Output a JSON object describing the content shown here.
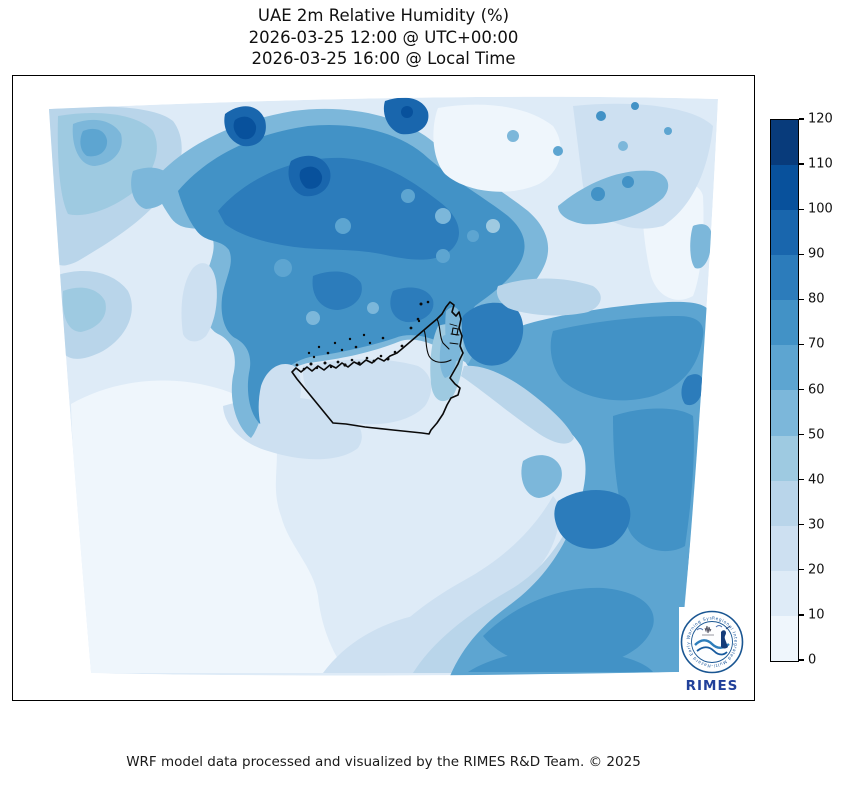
{
  "figure": {
    "title_line1": "UAE 2m Relative Humidity (%)",
    "title_line2": "2026-03-25 12:00 @ UTC+00:00",
    "title_line3": "2026-03-25 16:00 @ Local Time"
  },
  "colorbar": {
    "ticks": [
      0,
      10,
      20,
      30,
      40,
      50,
      60,
      70,
      80,
      90,
      100,
      110,
      120
    ],
    "band_colors": [
      "#eff6fc",
      "#deebf7",
      "#cde0f1",
      "#b9d5ea",
      "#9ecae1",
      "#7cb7da",
      "#5da5d1",
      "#4292c6",
      "#2c7cbb",
      "#1966ad",
      "#08519c",
      "#083b7b"
    ],
    "border_color": "#000000"
  },
  "logo": {
    "ring_text": "Regional Integrated Multi-Hazard Early Warning System",
    "name": "RIMES",
    "name_color": "#21409a",
    "ring_color": "#1a5692"
  },
  "footer": {
    "credit": "WRF model data processed and visualized by the RIMES R&D Team. © 2025"
  },
  "chart_data": {
    "type": "heatmap",
    "subtype": "filled-contour weather map",
    "title": "UAE 2m Relative Humidity (%)",
    "subtitle_utc": "2026-03-25 12:00 @ UTC+00:00",
    "subtitle_local": "2026-03-25 16:00 @ Local Time",
    "variable": "2 m relative humidity",
    "units": "%",
    "colormap": "Blues",
    "levels": [
      0,
      10,
      20,
      30,
      40,
      50,
      60,
      70,
      80,
      90,
      100,
      110,
      120
    ],
    "colorbar_ticks": [
      0,
      10,
      20,
      30,
      40,
      50,
      60,
      70,
      80,
      90,
      100,
      110,
      120
    ],
    "colorbar_range": [
      0,
      120
    ],
    "grid": false,
    "legend_position": "right colorbar",
    "overlays": [
      "UAE national and emirate boundaries (black)",
      "coastal settlement/island dots (black)",
      "RIMES logo bottom-right"
    ],
    "regions": [
      {
        "region": "Persian Gulf waters northwest of UAE",
        "rh_percent": "70-90"
      },
      {
        "region": "Iranian coast / mountains (top of domain)",
        "rh_percent": "80-110"
      },
      {
        "region": "Top-center white pocket (inland Iran)",
        "rh_percent": "0-20"
      },
      {
        "region": "Saudi Arabian desert interior (southwest quadrant)",
        "rh_percent": "0-20"
      },
      {
        "region": "UAE inland desert south of coast",
        "rh_percent": "10-30"
      },
      {
        "region": "Qatar peninsula light tongue",
        "rh_percent": "20-40"
      },
      {
        "region": "Strait of Hormuz / Musandam waters",
        "rh_percent": "70-90"
      },
      {
        "region": "Gulf of Oman and southeast corner of domain",
        "rh_percent": "60-80"
      },
      {
        "region": "Top-left corner of domain",
        "rh_percent": "30-60"
      },
      {
        "region": "Top-right corner of domain",
        "rh_percent": "10-30"
      }
    ]
  }
}
